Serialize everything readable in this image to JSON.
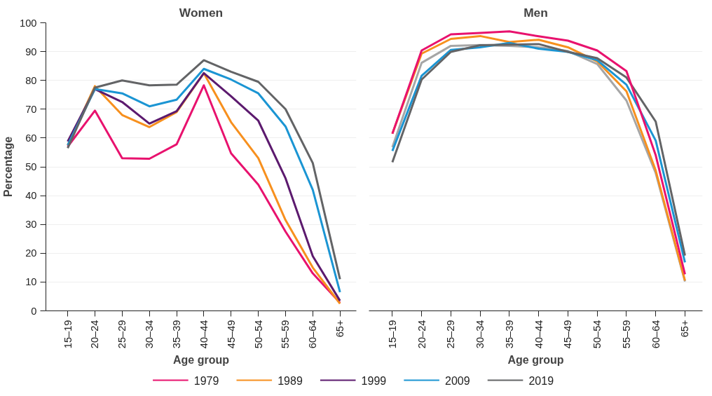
{
  "chart_data": [
    {
      "type": "line",
      "title": "Women",
      "xlabel": "Age group",
      "ylabel": "Percentage",
      "categories": [
        "15–19",
        "20–24",
        "25–29",
        "30–34",
        "35–39",
        "40–44",
        "45–49",
        "50–54",
        "55–59",
        "60–64",
        "65+"
      ],
      "ylim": [
        0,
        100
      ],
      "yticks": [
        0,
        10,
        20,
        30,
        40,
        50,
        60,
        70,
        80,
        90,
        100
      ],
      "grid": "y",
      "legend": "bottom",
      "marker": "none",
      "series": [
        {
          "name": "1979",
          "color": "#e8126e",
          "values": [
            57,
            69.5,
            53,
            52.8,
            57.8,
            78.3,
            54.7,
            43.8,
            27.5,
            13,
            2.8
          ]
        },
        {
          "name": "1989",
          "color": "#f7901e",
          "values": [
            57.5,
            78,
            68,
            63.8,
            69,
            82.5,
            65.5,
            53,
            31.5,
            15,
            2.5
          ]
        },
        {
          "name": "1999",
          "color": "#5c1a6e",
          "values": [
            58.8,
            77,
            72.5,
            65,
            69.3,
            82.5,
            74.5,
            66,
            46,
            19,
            3.5
          ]
        },
        {
          "name": "2009",
          "color": "#1b95d3",
          "values": [
            57.5,
            77,
            75.5,
            71,
            73.3,
            84,
            80.3,
            75.5,
            64,
            42,
            6.5
          ]
        },
        {
          "name": "2019",
          "color": "#636466",
          "values": [
            56.5,
            77.5,
            80,
            78.3,
            78.5,
            87,
            83,
            79.5,
            70,
            51.3,
            11
          ]
        }
      ]
    },
    {
      "type": "line",
      "title": "Men",
      "xlabel": "Age group",
      "categories": [
        "15–19",
        "20–24",
        "25–29",
        "30–34",
        "35–39",
        "40–44",
        "45–49",
        "50–54",
        "55–59",
        "60–64",
        "65+"
      ],
      "ylim": [
        0,
        100
      ],
      "yticks": [
        0,
        10,
        20,
        30,
        40,
        50,
        60,
        70,
        80,
        90,
        100
      ],
      "grid": "y",
      "tick_labels": "x",
      "marker": "none",
      "series": [
        {
          "color": "#a6a6a6",
          "values": [
            56.8,
            86.1,
            92,
            92.3,
            92,
            91.5,
            90.2,
            85.7,
            73,
            47.8,
            10.2
          ]
        },
        {
          "color": "#f7901e",
          "values": [
            61.5,
            89.3,
            94.4,
            95.4,
            93.3,
            94.1,
            91.5,
            86.6,
            76.2,
            48.7,
            10.5
          ]
        },
        {
          "color": "#1b95d3",
          "values": [
            55.5,
            81.6,
            90.6,
            91.5,
            93,
            91,
            89.9,
            87,
            78.5,
            59.1,
            16.8
          ]
        },
        {
          "color": "#636466",
          "values": [
            51.6,
            80.3,
            89.9,
            92.2,
            92.4,
            92.6,
            89.9,
            87.7,
            81,
            65.7,
            19.2
          ]
        },
        {
          "color": "#e8126e",
          "values": [
            61.5,
            90.4,
            96,
            96.5,
            97,
            95.3,
            93.8,
            90.4,
            83.2,
            54,
            12.7
          ]
        }
      ]
    }
  ]
}
